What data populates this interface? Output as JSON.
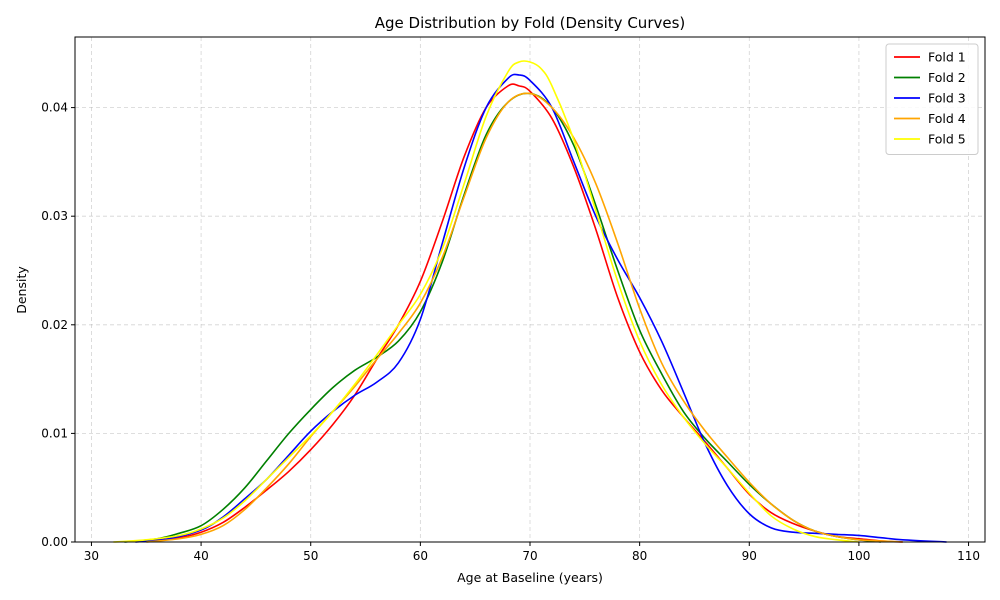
{
  "chart_data": {
    "type": "line",
    "title": "Age Distribution by Fold (Density Curves)",
    "xlabel": "Age at Baseline (years)",
    "ylabel": "Density",
    "xlim": [
      28.5,
      111.5
    ],
    "ylim": [
      0,
      0.0465
    ],
    "xticks": [
      30,
      40,
      50,
      60,
      70,
      80,
      90,
      100,
      110
    ],
    "yticks": [
      0,
      0.01,
      0.02,
      0.03,
      0.04
    ],
    "ytick_labels": [
      "0.00",
      "0.01",
      "0.02",
      "0.03",
      "0.04"
    ],
    "grid": true,
    "legend_position": "top-right",
    "series": [
      {
        "name": "Fold 1",
        "color": "#ff0000",
        "x": [
          35,
          38,
          40,
          42,
          44,
          46,
          48,
          50,
          52,
          54,
          56,
          58,
          60,
          62,
          64,
          66,
          68,
          69,
          70,
          72,
          74,
          76,
          78,
          80,
          82,
          84,
          86,
          88,
          90,
          92,
          94,
          96,
          98,
          100,
          102,
          104
        ],
        "y": [
          0.0001,
          0.0004,
          0.0009,
          0.0018,
          0.0032,
          0.0048,
          0.0065,
          0.0085,
          0.0108,
          0.0135,
          0.0168,
          0.02,
          0.024,
          0.0295,
          0.0355,
          0.04,
          0.042,
          0.042,
          0.0415,
          0.039,
          0.0345,
          0.0288,
          0.0225,
          0.0175,
          0.014,
          0.0115,
          0.0092,
          0.0068,
          0.0044,
          0.0027,
          0.0017,
          0.001,
          0.0005,
          0.0003,
          0.0001,
          0.0
        ]
      },
      {
        "name": "Fold 2",
        "color": "#008000",
        "x": [
          33,
          36,
          38,
          40,
          42,
          44,
          46,
          48,
          50,
          52,
          54,
          56,
          58,
          60,
          62,
          64,
          66,
          68,
          70,
          72,
          74,
          76,
          78,
          80,
          82,
          84,
          86,
          88,
          90,
          92,
          94,
          96,
          98,
          100,
          102
        ],
        "y": [
          0.0,
          0.0003,
          0.0008,
          0.0015,
          0.003,
          0.005,
          0.0075,
          0.01,
          0.0122,
          0.0142,
          0.0158,
          0.017,
          0.0185,
          0.0212,
          0.0258,
          0.032,
          0.0375,
          0.0405,
          0.0413,
          0.04,
          0.0365,
          0.031,
          0.025,
          0.0195,
          0.0155,
          0.012,
          0.0095,
          0.0074,
          0.0053,
          0.0035,
          0.002,
          0.001,
          0.0005,
          0.0002,
          0.0
        ]
      },
      {
        "name": "Fold 3",
        "color": "#0000ff",
        "x": [
          34,
          37,
          40,
          42,
          44,
          46,
          48,
          50,
          52,
          54,
          56,
          58,
          60,
          62,
          64,
          66,
          68,
          69,
          70,
          72,
          74,
          76,
          78,
          80,
          82,
          84,
          86,
          88,
          90,
          92,
          94,
          96,
          98,
          100,
          102,
          104,
          108
        ],
        "y": [
          0.0,
          0.0003,
          0.0011,
          0.0023,
          0.004,
          0.0058,
          0.008,
          0.0102,
          0.012,
          0.0135,
          0.0147,
          0.0165,
          0.0205,
          0.0275,
          0.0345,
          0.04,
          0.0427,
          0.043,
          0.0425,
          0.04,
          0.035,
          0.03,
          0.026,
          0.0225,
          0.0185,
          0.0138,
          0.009,
          0.0052,
          0.0026,
          0.0013,
          0.0009,
          0.0008,
          0.0007,
          0.0006,
          0.0004,
          0.0002,
          0.0
        ]
      },
      {
        "name": "Fold 4",
        "color": "#ffa500",
        "x": [
          35,
          38,
          40,
          42,
          44,
          46,
          48,
          50,
          52,
          54,
          56,
          58,
          60,
          62,
          64,
          66,
          68,
          70,
          72,
          74,
          76,
          78,
          80,
          82,
          84,
          86,
          88,
          90,
          92,
          94,
          96,
          98,
          100,
          102,
          104
        ],
        "y": [
          0.0,
          0.0003,
          0.0007,
          0.0015,
          0.003,
          0.005,
          0.0072,
          0.0097,
          0.012,
          0.0143,
          0.0168,
          0.0192,
          0.022,
          0.0262,
          0.0318,
          0.0372,
          0.0405,
          0.0413,
          0.04,
          0.0372,
          0.033,
          0.0275,
          0.0215,
          0.0165,
          0.013,
          0.0102,
          0.0078,
          0.0055,
          0.0035,
          0.002,
          0.001,
          0.0005,
          0.0002,
          0.0001,
          0.0
        ]
      },
      {
        "name": "Fold 5",
        "color": "#ffff00",
        "x": [
          32,
          35,
          38,
          40,
          42,
          44,
          46,
          48,
          50,
          52,
          54,
          56,
          58,
          60,
          62,
          64,
          66,
          68,
          69,
          70,
          71,
          72,
          74,
          76,
          78,
          80,
          82,
          84,
          86,
          88,
          90,
          92,
          94,
          96,
          98,
          100
        ],
        "y": [
          0.0,
          0.0002,
          0.0006,
          0.0012,
          0.0022,
          0.0038,
          0.0058,
          0.0078,
          0.0098,
          0.012,
          0.0145,
          0.0172,
          0.02,
          0.0228,
          0.027,
          0.033,
          0.0392,
          0.0433,
          0.0442,
          0.0442,
          0.0436,
          0.042,
          0.037,
          0.0305,
          0.024,
          0.0185,
          0.0145,
          0.0115,
          0.009,
          0.0068,
          0.0045,
          0.0024,
          0.0012,
          0.0005,
          0.0002,
          0.0
        ]
      }
    ]
  }
}
